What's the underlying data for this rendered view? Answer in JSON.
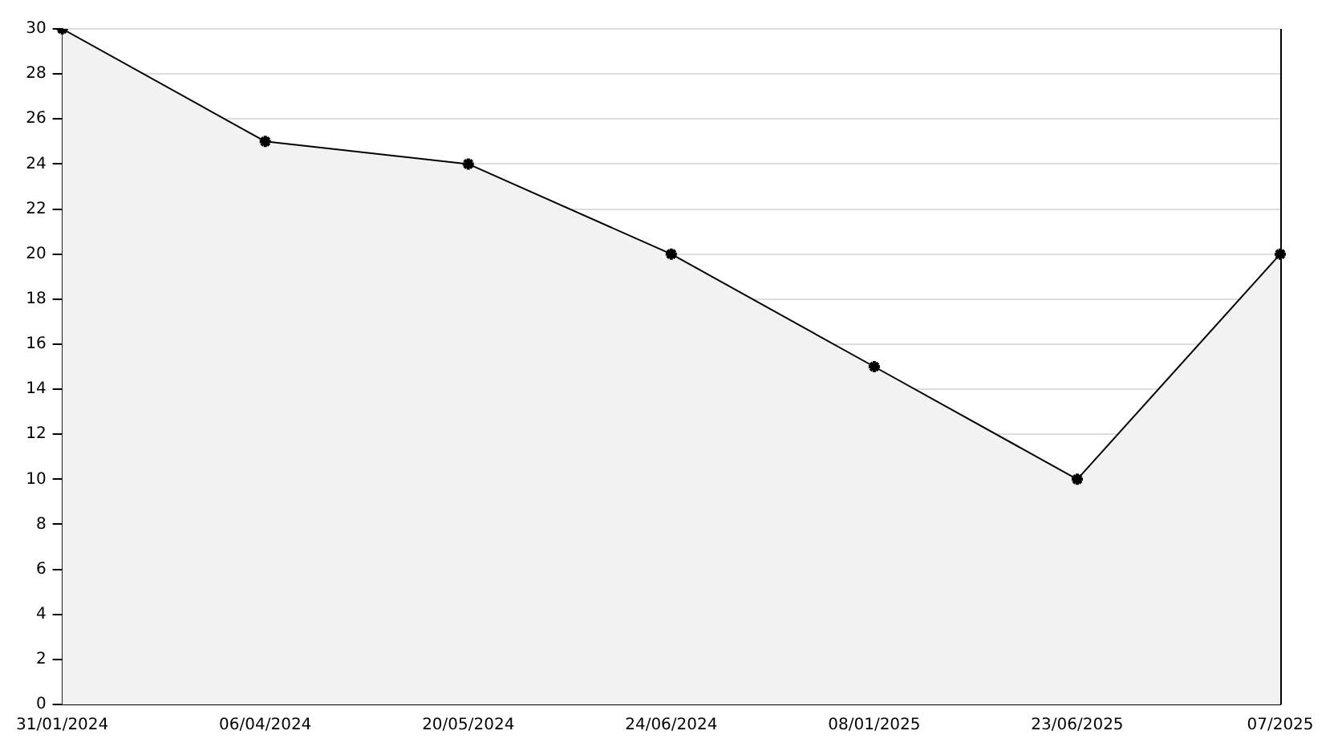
{
  "chart_data": {
    "type": "area",
    "categories": [
      "31/01/2024",
      "06/04/2024",
      "20/05/2024",
      "24/06/2024",
      "08/01/2025",
      "23/06/2025",
      "07/2025"
    ],
    "series": [
      {
        "color": "#000000",
        "values": [
          30,
          25,
          24,
          20,
          15,
          10,
          20
        ]
      }
    ],
    "ylim": [
      0,
      30
    ],
    "yticks": [
      0,
      2,
      4,
      6,
      8,
      10,
      12,
      14,
      16,
      18,
      20,
      22,
      24,
      26,
      28,
      30
    ],
    "grid": "y",
    "legend": false,
    "marker": "cross",
    "line_style": "solid"
  }
}
